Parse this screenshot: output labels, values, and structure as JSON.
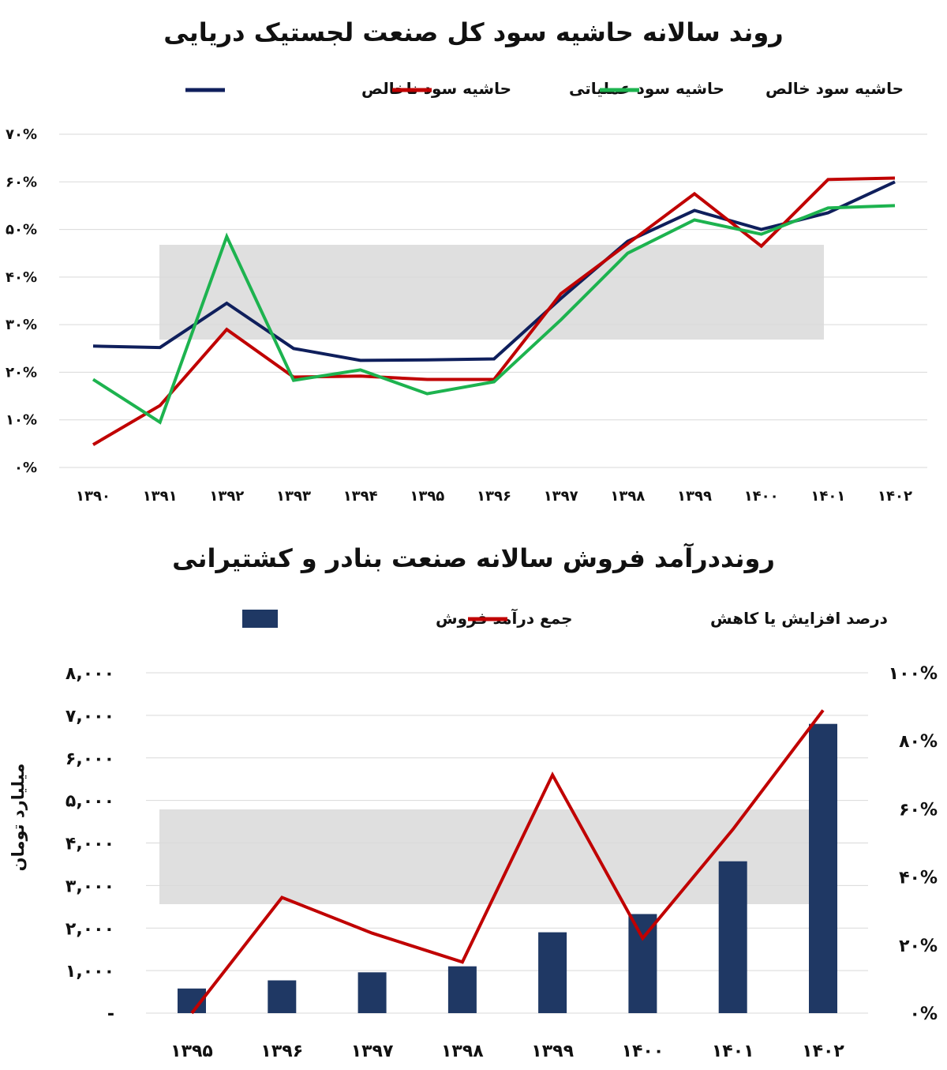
{
  "chart_data": [
    {
      "type": "line",
      "title": "روند سالانه حاشیه سود کل صنعت لجستیک دریایی",
      "categories": [
        "۱۳۹۰",
        "۱۳۹۱",
        "۱۳۹۲",
        "۱۳۹۳",
        "۱۳۹۴",
        "۱۳۹۵",
        "۱۳۹۶",
        "۱۳۹۷",
        "۱۳۹۸",
        "۱۳۹۹",
        "۱۴۰۰",
        "۱۴۰۱",
        "۱۴۰۲"
      ],
      "y_ticks": [
        "۰%",
        "۱۰%",
        "۲۰%",
        "۳۰%",
        "۴۰%",
        "۵۰%",
        "۶۰%",
        "۷۰%"
      ],
      "ylim": [
        0,
        70
      ],
      "grid": true,
      "legend": "top-center",
      "series": [
        {
          "name": "حاشیه سود ناخالص",
          "color": "#0f1f5c",
          "values": [
            25.5,
            25.2,
            34.5,
            25.0,
            22.5,
            22.6,
            22.8,
            35.5,
            47.5,
            54.0,
            50.0,
            53.5,
            60.0
          ]
        },
        {
          "name": "حاشیه سود عملیاتی",
          "color": "#c00000",
          "values": [
            4.8,
            13.0,
            29.0,
            19.0,
            19.2,
            18.5,
            18.5,
            36.5,
            47.0,
            57.5,
            46.5,
            60.5,
            60.8
          ]
        },
        {
          "name": "حاشیه سود خالص",
          "color": "#1db34f",
          "values": [
            18.5,
            9.5,
            48.5,
            18.3,
            20.5,
            15.5,
            18.0,
            31.0,
            45.0,
            52.0,
            49.0,
            54.5,
            55.0
          ]
        }
      ]
    },
    {
      "type": "bar",
      "title": "رونددرآمد فروش سالانه صنعت بنادر و کشتیرانی",
      "categories": [
        "۱۳۹۵",
        "۱۳۹۶",
        "۱۳۹۷",
        "۱۳۹۸",
        "۱۳۹۹",
        "۱۴۰۰",
        "۱۴۰۱",
        "۱۴۰۲"
      ],
      "ylabel": "میلیارد تومان",
      "y_ticks": [
        "-",
        "۱,۰۰۰",
        "۲,۰۰۰",
        "۳,۰۰۰",
        "۴,۰۰۰",
        "۵,۰۰۰",
        "۶,۰۰۰",
        "۷,۰۰۰",
        "۸,۰۰۰"
      ],
      "ylim": [
        0,
        8000
      ],
      "y2_ticks": [
        "۰%",
        "۲۰%",
        "۴۰%",
        "۶۰%",
        "۸۰%",
        "۱۰۰%"
      ],
      "y2lim": [
        0,
        100
      ],
      "grid": true,
      "legend": "top-center",
      "series": [
        {
          "name": "جمع درآمد فروش",
          "type": "bar",
          "color": "#1f3864",
          "values": [
            580,
            770,
            960,
            1100,
            1900,
            2330,
            3570,
            6800
          ]
        },
        {
          "name": "درصد افزایش یا کاهش",
          "type": "line",
          "axis": "right",
          "color": "#c00000",
          "values": [
            0,
            34,
            23.5,
            15,
            70,
            22,
            54,
            89
          ]
        }
      ]
    }
  ]
}
